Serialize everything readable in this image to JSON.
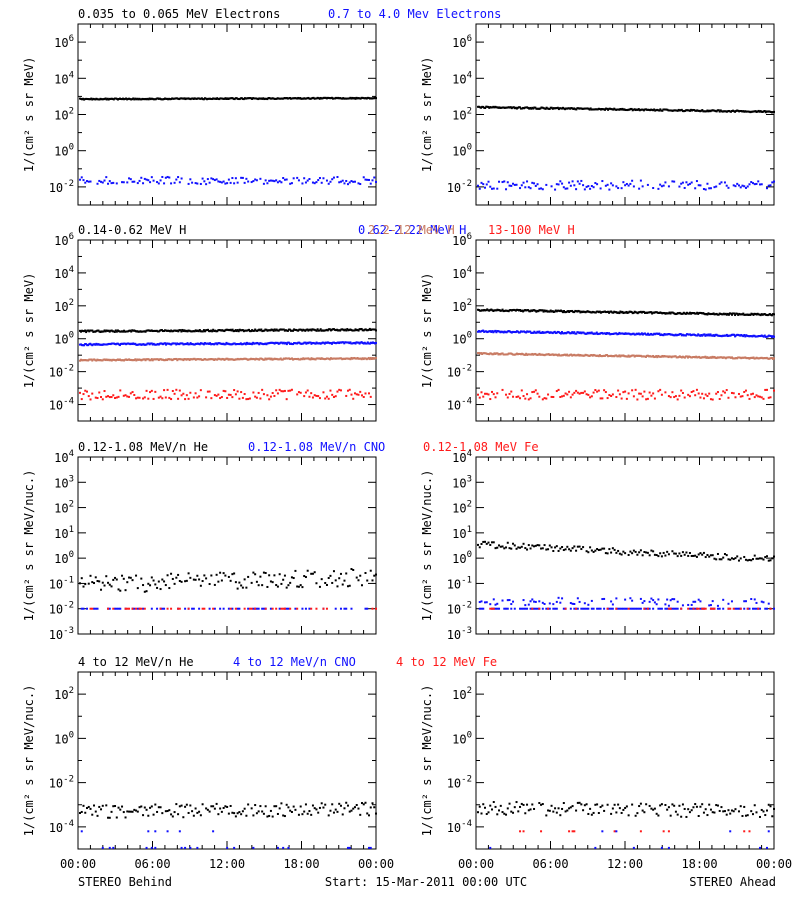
{
  "figure": {
    "x_ticks": [
      "00:00",
      "06:00",
      "12:00",
      "18:00",
      "00:00"
    ],
    "footer_left": "STEREO Behind",
    "footer_center": "Start: 15-Mar-2011 00:00 UTC",
    "footer_right": "STEREO Ahead"
  },
  "chart_data": [
    {
      "type": "scatter",
      "panel": "electrons",
      "ylabel": "1/(cm² s sr MeV)",
      "scale": "log",
      "ylim_exp": [
        -3,
        7
      ],
      "yticks_exp": [
        -2,
        0,
        2,
        4,
        6
      ],
      "yticks": [
        "10⁻²",
        "10⁰",
        "10²",
        "10⁴",
        "10⁶"
      ],
      "titles": [
        {
          "text": "0.035 to 0.065 MeV Electrons",
          "color": "#000000"
        },
        {
          "text": "0.7 to 4.0 Mev Electrons",
          "color": "#1010ff"
        }
      ],
      "columns": [
        {
          "spacecraft": "STEREO Behind",
          "series": [
            {
              "color": "#000000",
              "kind": "line",
              "log_start": 2.85,
              "log_end": 2.9,
              "jitter": 0.03,
              "coverage": 1.0
            },
            {
              "color": "#1010ff",
              "kind": "dots",
              "log_start": -1.65,
              "log_end": -1.65,
              "jitter": 0.2,
              "coverage": 0.85
            }
          ]
        },
        {
          "spacecraft": "STEREO Ahead",
          "series": [
            {
              "color": "#000000",
              "kind": "line",
              "log_start": 2.4,
              "log_end": 2.15,
              "jitter": 0.04,
              "coverage": 1.0
            },
            {
              "color": "#1010ff",
              "kind": "dots",
              "log_start": -1.9,
              "log_end": -1.9,
              "jitter": 0.25,
              "coverage": 0.85
            }
          ]
        }
      ]
    },
    {
      "type": "scatter",
      "panel": "protons",
      "ylabel": "1/(cm² s sr MeV)",
      "scale": "log",
      "ylim_exp": [
        -5,
        6
      ],
      "yticks_exp": [
        -4,
        -2,
        0,
        2,
        4,
        6
      ],
      "yticks": [
        "10⁻⁴",
        "10⁻²",
        "10⁰",
        "10²",
        "10⁴",
        "10⁶"
      ],
      "titles": [
        {
          "text": "0.14-0.62 MeV H",
          "color": "#000000"
        },
        {
          "text": "0.62-2.22 MeV H",
          "color": "#1010ff"
        },
        {
          "text": "2.2-12 MeV H",
          "color": "#c87a62"
        },
        {
          "text": "13-100 MeV H",
          "color": "#ff1a1a"
        }
      ],
      "columns": [
        {
          "spacecraft": "STEREO Behind",
          "series": [
            {
              "color": "#000000",
              "kind": "line",
              "log_start": 0.45,
              "log_end": 0.55,
              "jitter": 0.05,
              "coverage": 1.0
            },
            {
              "color": "#1010ff",
              "kind": "line",
              "log_start": -0.35,
              "log_end": -0.25,
              "jitter": 0.05,
              "coverage": 1.0
            },
            {
              "color": "#c87a62",
              "kind": "line",
              "log_start": -1.3,
              "log_end": -1.2,
              "jitter": 0.04,
              "coverage": 1.0
            },
            {
              "color": "#ff1a1a",
              "kind": "dots",
              "log_start": -3.4,
              "log_end": -3.4,
              "jitter": 0.3,
              "coverage": 0.9
            }
          ]
        },
        {
          "spacecraft": "STEREO Ahead",
          "series": [
            {
              "color": "#000000",
              "kind": "line",
              "log_start": 1.75,
              "log_end": 1.45,
              "jitter": 0.05,
              "coverage": 1.0
            },
            {
              "color": "#1010ff",
              "kind": "line",
              "log_start": 0.45,
              "log_end": 0.15,
              "jitter": 0.05,
              "coverage": 1.0
            },
            {
              "color": "#c87a62",
              "kind": "line",
              "log_start": -0.9,
              "log_end": -1.2,
              "jitter": 0.04,
              "coverage": 1.0
            },
            {
              "color": "#ff1a1a",
              "kind": "dots",
              "log_start": -3.4,
              "log_end": -3.4,
              "jitter": 0.3,
              "coverage": 0.9
            }
          ]
        }
      ]
    },
    {
      "type": "scatter",
      "panel": "suprathermal-heavy-ions",
      "ylabel": "1/(cm² s sr MeV/nuc.)",
      "scale": "log",
      "ylim_exp": [
        -3,
        4
      ],
      "yticks_exp": [
        -3,
        -2,
        -1,
        0,
        1,
        2,
        3,
        4
      ],
      "yticks": [
        "10⁻³",
        "10⁻²",
        "10⁻¹",
        "10⁰",
        "10¹",
        "10²",
        "10³",
        "10⁴"
      ],
      "titles": [
        {
          "text": "0.12-1.08 MeV/n He",
          "color": "#000000"
        },
        {
          "text": "0.12-1.08 MeV/n CNO",
          "color": "#1010ff"
        },
        {
          "text": "0.12-1.08 MeV Fe",
          "color": "#ff1a1a"
        }
      ],
      "columns": [
        {
          "spacecraft": "STEREO Behind",
          "series": [
            {
              "color": "#000000",
              "kind": "dots",
              "log_start": -1.05,
              "log_end": -0.75,
              "jitter": 0.35,
              "coverage": 0.9
            },
            {
              "color": "#1010ff",
              "kind": "dots",
              "log_start": -2.0,
              "log_end": -2.0,
              "jitter": 0.0,
              "coverage": 0.35
            },
            {
              "color": "#ff1a1a",
              "kind": "dots",
              "log_start": -2.0,
              "log_end": -2.0,
              "jitter": 0.0,
              "coverage": 0.2
            }
          ]
        },
        {
          "spacecraft": "STEREO Ahead",
          "series": [
            {
              "color": "#000000",
              "kind": "dots",
              "log_start": 0.55,
              "log_end": -0.05,
              "jitter": 0.12,
              "coverage": 0.95
            },
            {
              "color": "#1010ff",
              "kind": "dots",
              "log_start": -1.7,
              "log_end": -1.75,
              "jitter": 0.15,
              "coverage": 0.45
            },
            {
              "color": "#1010ff",
              "kind": "dots",
              "log_start": -2.0,
              "log_end": -2.0,
              "jitter": 0.0,
              "coverage": 0.7
            },
            {
              "color": "#ff1a1a",
              "kind": "dots",
              "log_start": -2.0,
              "log_end": -2.0,
              "jitter": 0.0,
              "coverage": 0.25
            }
          ]
        }
      ]
    },
    {
      "type": "scatter",
      "panel": "energetic-heavy-ions",
      "ylabel": "1/(cm² s sr MeV/nuc.)",
      "scale": "log",
      "ylim_exp": [
        -5,
        3
      ],
      "yticks_exp": [
        -4,
        -2,
        0,
        2
      ],
      "yticks": [
        "10⁻⁴",
        "10⁻²",
        "10⁰",
        "10²"
      ],
      "titles": [
        {
          "text": "4 to 12 MeV/n He",
          "color": "#000000"
        },
        {
          "text": "4 to 12 MeV/n CNO",
          "color": "#1010ff"
        },
        {
          "text": "4 to 12 MeV Fe",
          "color": "#ff1a1a"
        }
      ],
      "columns": [
        {
          "spacecraft": "STEREO Behind",
          "series": [
            {
              "color": "#000000",
              "kind": "dots",
              "log_start": -3.3,
              "log_end": -3.2,
              "jitter": 0.3,
              "coverage": 0.95
            },
            {
              "color": "#1010ff",
              "kind": "dots",
              "log_start": -4.2,
              "log_end": -4.2,
              "jitter": 0.0,
              "coverage": 0.04
            },
            {
              "color": "#1010ff",
              "kind": "dots",
              "log_start": -4.95,
              "log_end": -4.95,
              "jitter": 0.0,
              "coverage": 0.1
            }
          ]
        },
        {
          "spacecraft": "STEREO Ahead",
          "series": [
            {
              "color": "#000000",
              "kind": "dots",
              "log_start": -3.15,
              "log_end": -3.3,
              "jitter": 0.3,
              "coverage": 0.95
            },
            {
              "color": "#ff1a1a",
              "kind": "dots",
              "log_start": -4.2,
              "log_end": -4.2,
              "jitter": 0.0,
              "coverage": 0.06
            },
            {
              "color": "#1010ff",
              "kind": "dots",
              "log_start": -4.2,
              "log_end": -4.2,
              "jitter": 0.0,
              "coverage": 0.05
            },
            {
              "color": "#1010ff",
              "kind": "dots",
              "log_start": -4.95,
              "log_end": -4.95,
              "jitter": 0.0,
              "coverage": 0.05
            }
          ]
        }
      ]
    }
  ]
}
